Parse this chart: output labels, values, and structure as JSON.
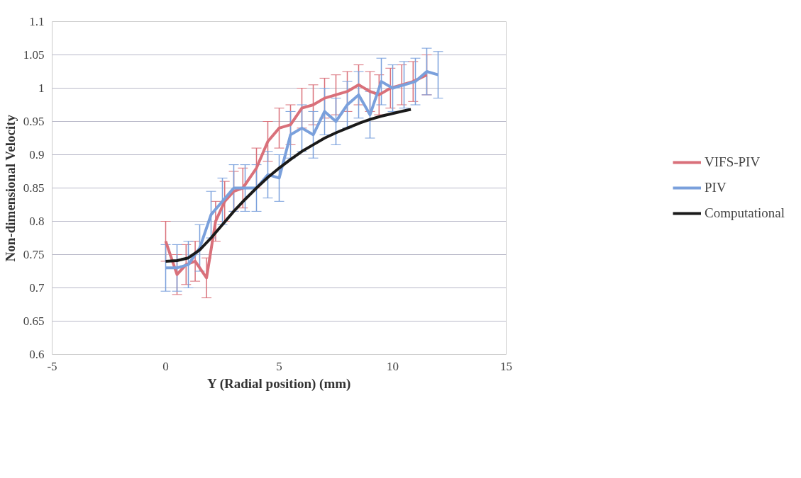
{
  "chart_data": {
    "type": "line",
    "xlabel": "Y (Radial position) (mm)",
    "ylabel": "Non-dimensional Velocity",
    "xlim": [
      -5,
      15
    ],
    "xticks": [
      -5,
      0,
      5,
      10,
      15
    ],
    "ylim": [
      0.6,
      1.1
    ],
    "yticks": [
      0.6,
      0.65,
      0.7,
      0.75,
      0.8,
      0.85,
      0.9,
      0.95,
      1,
      1.05,
      1.1
    ],
    "grid": "y",
    "legend": "right",
    "marker": "none",
    "line_style": "solid",
    "series": [
      {
        "name": "VIFS-PIV",
        "color": "#d9707a",
        "x": [
          0,
          0.5,
          0.9,
          1.3,
          1.8,
          2.2,
          2.6,
          3,
          3.4,
          4,
          4.5,
          5,
          5.5,
          6,
          6.5,
          7,
          7.5,
          8,
          8.5,
          9,
          9.4,
          9.9,
          10.4,
          10.9,
          11.5
        ],
        "values": [
          0.77,
          0.72,
          0.735,
          0.74,
          0.715,
          0.8,
          0.83,
          0.845,
          0.85,
          0.88,
          0.92,
          0.94,
          0.945,
          0.97,
          0.975,
          0.985,
          0.99,
          0.995,
          1.005,
          0.995,
          0.99,
          1.0,
          1.005,
          1.01,
          1.02
        ],
        "errors": [
          0.03,
          0.03,
          0.03,
          0.03,
          0.03,
          0.03,
          0.03,
          0.03,
          0.03,
          0.03,
          0.03,
          0.03,
          0.03,
          0.03,
          0.03,
          0.03,
          0.03,
          0.03,
          0.03,
          0.03,
          0.03,
          0.03,
          0.03,
          0.03,
          0.03
        ]
      },
      {
        "name": "PIV",
        "color": "#7aa0dc",
        "x": [
          0,
          0.5,
          1,
          1.5,
          2,
          2.5,
          3,
          3.5,
          4,
          4.5,
          5,
          5.5,
          6,
          6.5,
          7,
          7.5,
          8,
          8.5,
          9,
          9.5,
          10,
          10.5,
          11,
          11.5,
          12
        ],
        "values": [
          0.73,
          0.73,
          0.735,
          0.76,
          0.81,
          0.83,
          0.85,
          0.85,
          0.85,
          0.87,
          0.865,
          0.93,
          0.94,
          0.93,
          0.965,
          0.95,
          0.975,
          0.99,
          0.96,
          1.01,
          1.0,
          1.005,
          1.01,
          1.025,
          1.02
        ],
        "errors": [
          0.035,
          0.035,
          0.035,
          0.035,
          0.035,
          0.035,
          0.035,
          0.035,
          0.035,
          0.035,
          0.035,
          0.035,
          0.035,
          0.035,
          0.035,
          0.035,
          0.035,
          0.035,
          0.035,
          0.035,
          0.035,
          0.035,
          0.035,
          0.035,
          0.035
        ]
      },
      {
        "name": "Computational",
        "color": "#1a1a1a",
        "x": [
          0,
          0.5,
          1,
          1.5,
          2,
          2.5,
          3,
          3.5,
          4,
          4.5,
          5,
          5.5,
          6,
          6.5,
          7,
          7.5,
          8,
          8.5,
          9,
          9.5,
          10,
          10.5,
          10.8
        ],
        "values": [
          0.74,
          0.741,
          0.745,
          0.757,
          0.775,
          0.795,
          0.815,
          0.833,
          0.85,
          0.866,
          0.88,
          0.893,
          0.905,
          0.915,
          0.925,
          0.933,
          0.94,
          0.947,
          0.953,
          0.958,
          0.962,
          0.966,
          0.968
        ]
      }
    ]
  }
}
